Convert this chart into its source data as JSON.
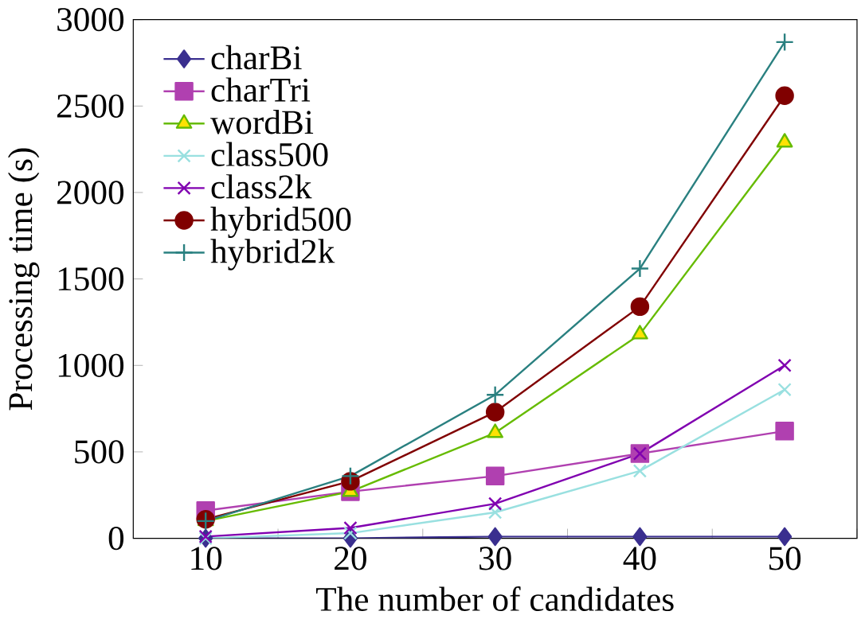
{
  "chart_data": {
    "type": "line",
    "xlabel": "The number of candidates",
    "ylabel": "Processing time (s)",
    "x": [
      10,
      20,
      30,
      40,
      50
    ],
    "xlim": [
      5,
      55
    ],
    "xticks": [
      10,
      {
        "value": 15,
        "label": null
      },
      20,
      {
        "value": 25,
        "label": null
      },
      30,
      {
        "value": 35,
        "label": null
      },
      40,
      {
        "value": 45,
        "label": null
      },
      50,
      {
        "value": 55,
        "label": null
      }
    ],
    "ylim": [
      0,
      3000
    ],
    "yticks": [
      0,
      500,
      1000,
      1500,
      2000,
      2500,
      3000
    ],
    "grid": false,
    "legend": "top left",
    "series": [
      {
        "name": "charBi",
        "color": "#3a2f8f",
        "marker": "diamond",
        "values": [
          0,
          0,
          10,
          10,
          10
        ]
      },
      {
        "name": "charTri",
        "color": "#b040b0",
        "marker": "square",
        "values": [
          160,
          270,
          360,
          490,
          620
        ]
      },
      {
        "name": "wordBi",
        "color": "#66bb00",
        "marker": "triangle",
        "values": [
          100,
          270,
          610,
          1180,
          2290
        ]
      },
      {
        "name": "class500",
        "color": "#99e0e0",
        "marker": "cross",
        "values": [
          0,
          30,
          150,
          390,
          860
        ]
      },
      {
        "name": "class2k",
        "color": "#8000b0",
        "marker": "cross",
        "values": [
          10,
          60,
          200,
          490,
          1000
        ]
      },
      {
        "name": "hybrid500",
        "color": "#800000",
        "marker": "circle",
        "values": [
          110,
          330,
          730,
          1340,
          2560
        ]
      },
      {
        "name": "hybrid2k",
        "color": "#2a8080",
        "marker": "plus",
        "values": [
          100,
          360,
          830,
          1560,
          2870
        ]
      }
    ]
  }
}
